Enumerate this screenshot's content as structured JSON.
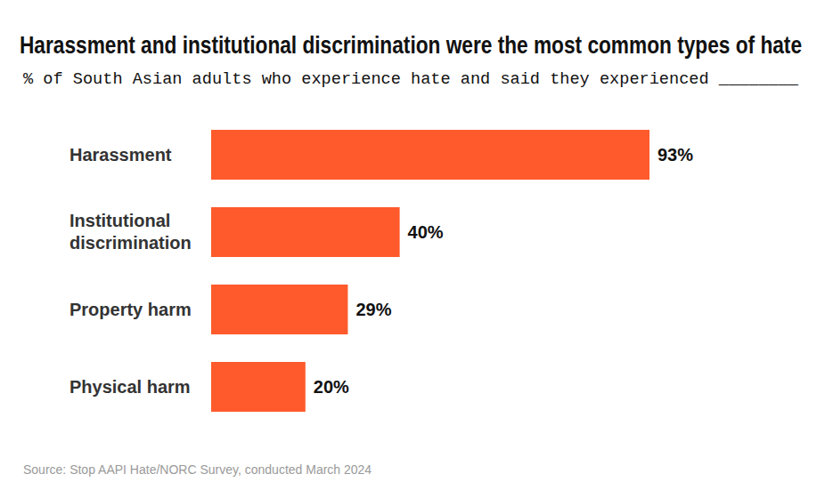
{
  "chart_data": {
    "type": "bar",
    "title": "Harassment and institutional discrimination were the most common types of hate",
    "subtitle": "% of South Asian adults who experience hate and said they experienced ________",
    "source": "Source: Stop AAPI Hate/NORC Survey, conducted March 2024",
    "orientation": "horizontal",
    "categories": [
      "Harassment",
      "Institutional discrimination",
      "Property harm",
      "Physical harm"
    ],
    "values": [
      93,
      40,
      29,
      20
    ],
    "value_labels": [
      "93%",
      "40%",
      "29%",
      "20%"
    ],
    "data_labels": true,
    "tick_labels": "y",
    "grid": false,
    "color": "#FF5A2C"
  }
}
